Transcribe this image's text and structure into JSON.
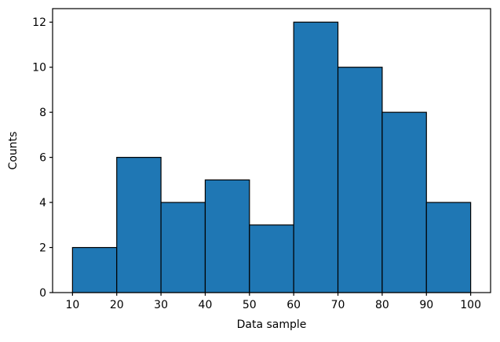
{
  "figure": {
    "background": "#ffffff"
  },
  "chart_data": {
    "type": "bar",
    "subtype": "histogram",
    "title": "",
    "xlabel": "Data sample",
    "ylabel": "Counts",
    "bin_edges": [
      10,
      20,
      30,
      40,
      50,
      60,
      70,
      80,
      90,
      100
    ],
    "counts": [
      2,
      6,
      4,
      5,
      3,
      12,
      10,
      8,
      4
    ],
    "xticks": [
      10,
      20,
      30,
      40,
      50,
      60,
      70,
      80,
      90,
      100
    ],
    "yticks": [
      0,
      2,
      4,
      6,
      8,
      10,
      12
    ],
    "xlim": [
      5.5,
      104.5
    ],
    "ylim": [
      0,
      12.6
    ],
    "bar_color": "#1f77b4",
    "edge_color": "#000000",
    "spine_color": "#000000",
    "tick_color": "#000000",
    "grid": false,
    "legend_visible": false
  }
}
